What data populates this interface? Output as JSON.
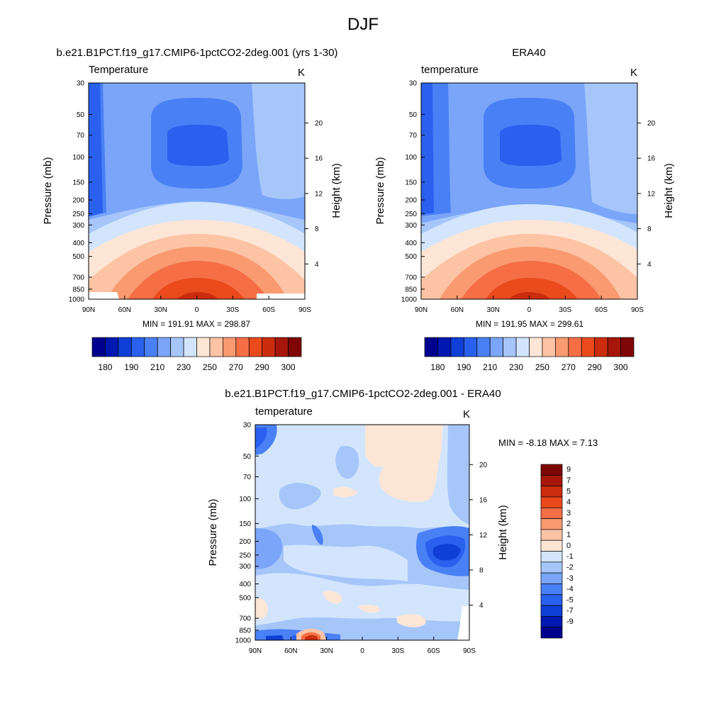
{
  "figure_title": "DJF",
  "colors": {
    "diverging": [
      "#00008f",
      "#0018b0",
      "#0f3fd6",
      "#2960ee",
      "#4a80f5",
      "#7aa5f8",
      "#a6c6fa",
      "#d2e5fc",
      "#fde6d6",
      "#fcc3a4",
      "#f99a70",
      "#f56e45",
      "#ea4a1c",
      "#cc2c0e",
      "#a7160a",
      "#7e0606"
    ]
  },
  "chart_data": [
    {
      "type": "contour",
      "panel": "model",
      "title": "b.e21.B1PCT.f19_g17.CMIP6-1pctCO2-2deg.001 (yrs 1-30)",
      "left_label": "Temperature",
      "units": "K",
      "xlabel": "",
      "ylabel": "Pressure (mb)",
      "ylabel_right": "Height (km)",
      "x_ticks": [
        "90N",
        "60N",
        "30N",
        "0",
        "30S",
        "60S",
        "90S"
      ],
      "x_values": [
        90,
        60,
        30,
        0,
        -30,
        -60,
        -90
      ],
      "y_ticks": [
        30,
        50,
        70,
        100,
        150,
        200,
        250,
        300,
        400,
        500,
        700,
        850,
        1000
      ],
      "ylim": [
        30,
        1000
      ],
      "height_ticks": [
        4,
        8,
        12,
        16,
        20
      ],
      "stats_text": "MIN = 191.91  MAX = 298.87",
      "min": 191.91,
      "max": 298.87,
      "colorbar_labels": [
        180,
        190,
        210,
        230,
        250,
        270,
        290,
        300
      ]
    },
    {
      "type": "contour",
      "panel": "obs",
      "title": "ERA40",
      "left_label": "temperature",
      "units": "K",
      "xlabel": "",
      "ylabel": "Pressure (mb)",
      "ylabel_right": "Height (km)",
      "x_ticks": [
        "90N",
        "60N",
        "30N",
        "0",
        "30S",
        "60S",
        "90S"
      ],
      "x_values": [
        90,
        60,
        30,
        0,
        -30,
        -60,
        -90
      ],
      "y_ticks": [
        30,
        50,
        70,
        100,
        150,
        200,
        250,
        300,
        400,
        500,
        700,
        850,
        1000
      ],
      "ylim": [
        30,
        1000
      ],
      "height_ticks": [
        4,
        8,
        12,
        16,
        20
      ],
      "stats_text": "MIN = 191.95  MAX = 299.61",
      "min": 191.95,
      "max": 299.61,
      "colorbar_labels": [
        180,
        190,
        210,
        230,
        250,
        270,
        290,
        300
      ]
    },
    {
      "type": "contour",
      "panel": "difference",
      "title": "b.e21.B1PCT.f19_g17.CMIP6-1pctCO2-2deg.001 - ERA40",
      "left_label": "temperature",
      "units": "K",
      "xlabel": "",
      "ylabel": "Pressure (mb)",
      "ylabel_right": "Height (km)",
      "x_ticks": [
        "90N",
        "60N",
        "30N",
        "0",
        "30S",
        "60S",
        "90S"
      ],
      "x_values": [
        90,
        60,
        30,
        0,
        -30,
        -60,
        -90
      ],
      "y_ticks": [
        30,
        50,
        70,
        100,
        150,
        200,
        250,
        300,
        400,
        500,
        700,
        850,
        1000
      ],
      "ylim": [
        30,
        1000
      ],
      "height_ticks": [
        4,
        8,
        12,
        16,
        20
      ],
      "stats_text": "MIN =  -8.18  MAX =   7.13",
      "min": -8.18,
      "max": 7.13,
      "colorbar_labels": [
        9,
        7,
        5,
        4,
        3,
        2,
        1,
        0,
        -1,
        -2,
        -3,
        -4,
        -5,
        -7,
        -9
      ]
    }
  ]
}
